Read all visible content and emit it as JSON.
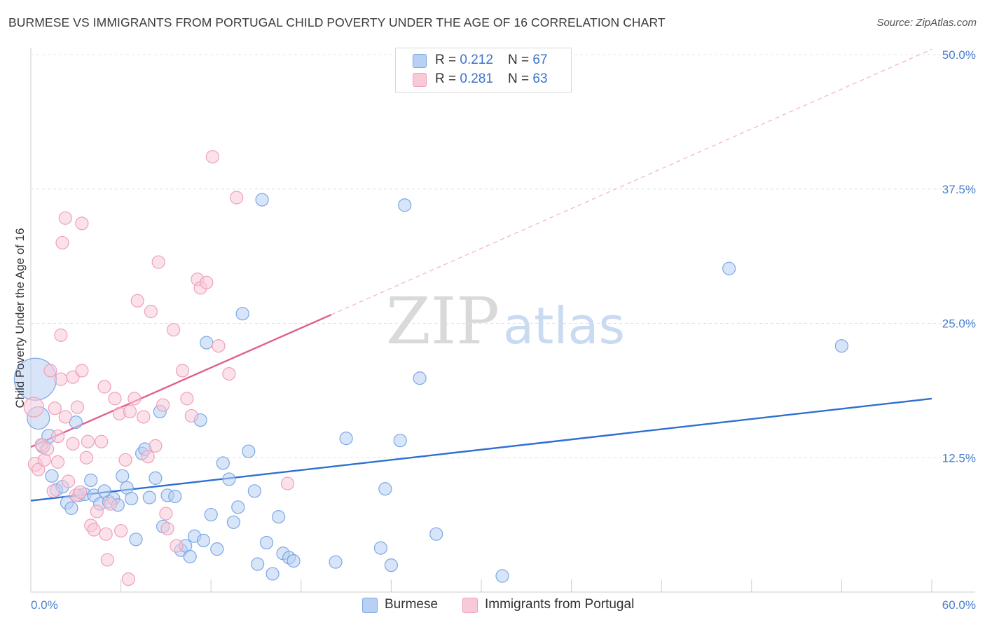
{
  "title": "BURMESE VS IMMIGRANTS FROM PORTUGAL CHILD POVERTY UNDER THE AGE OF 16 CORRELATION CHART",
  "source": "Source: ZipAtlas.com",
  "watermark": {
    "zip": "ZIP",
    "atlas": "atlas"
  },
  "legend": {
    "rows": [
      {
        "r_label": "R = ",
        "r_value": "0.212",
        "n_label": "N = ",
        "n_value": "67"
      },
      {
        "r_label": "R = ",
        "r_value": "0.281",
        "n_label": "N = ",
        "n_value": "63"
      }
    ]
  },
  "chart_data": {
    "type": "scatter",
    "title": "BURMESE VS IMMIGRANTS FROM PORTUGAL CHILD POVERTY UNDER THE AGE OF 16 CORRELATION CHART",
    "xlabel": "",
    "ylabel": "Child Poverty Under the Age of 16",
    "xlim": [
      0,
      60
    ],
    "ylim": [
      0,
      50
    ],
    "x_tick_labels": [
      "0.0%",
      "60.0%"
    ],
    "y_ticks": [
      12.5,
      25,
      37.5,
      50
    ],
    "y_tick_labels": [
      "12.5%",
      "25.0%",
      "37.5%",
      "50.0%"
    ],
    "grid": true,
    "legend_position": "top-center",
    "series": [
      {
        "name": "Burmese",
        "color": "#7ba7e6",
        "fill": "#b8d0f2",
        "line_color": "#2f6fd0",
        "trend": {
          "x": [
            0,
            60
          ],
          "y": [
            8.5,
            18.0
          ],
          "dashed_extension": false
        },
        "points": [
          [
            0.3,
            19.8,
            30
          ],
          [
            0.5,
            16.2,
            16
          ],
          [
            0.8,
            13.6,
            10
          ],
          [
            1.2,
            14.5,
            10
          ],
          [
            1.4,
            10.8,
            9
          ],
          [
            1.7,
            9.5,
            9
          ],
          [
            2.1,
            9.8,
            9
          ],
          [
            2.4,
            8.3,
            9
          ],
          [
            2.7,
            7.8,
            9
          ],
          [
            3.0,
            15.8,
            9
          ],
          [
            3.2,
            9.0,
            9
          ],
          [
            3.6,
            9.1,
            9
          ],
          [
            4.0,
            10.4,
            9
          ],
          [
            4.2,
            9.0,
            9
          ],
          [
            4.6,
            8.2,
            9
          ],
          [
            4.9,
            9.4,
            9
          ],
          [
            5.2,
            8.4,
            9
          ],
          [
            5.5,
            8.7,
            9
          ],
          [
            5.8,
            8.1,
            9
          ],
          [
            6.1,
            10.8,
            9
          ],
          [
            6.4,
            9.7,
            9
          ],
          [
            6.7,
            8.7,
            9
          ],
          [
            7.0,
            4.9,
            9
          ],
          [
            7.4,
            12.9,
            9
          ],
          [
            7.6,
            13.3,
            9
          ],
          [
            7.9,
            8.8,
            9
          ],
          [
            8.3,
            10.6,
            9
          ],
          [
            8.6,
            16.8,
            9
          ],
          [
            8.8,
            6.1,
            9
          ],
          [
            9.1,
            9.0,
            9
          ],
          [
            9.6,
            8.9,
            9
          ],
          [
            10.0,
            3.9,
            9
          ],
          [
            10.3,
            4.3,
            9
          ],
          [
            10.6,
            3.3,
            9
          ],
          [
            10.9,
            5.2,
            9
          ],
          [
            11.3,
            16.0,
            9
          ],
          [
            11.5,
            4.8,
            9
          ],
          [
            11.7,
            23.2,
            9
          ],
          [
            12.0,
            7.2,
            9
          ],
          [
            12.4,
            4.0,
            9
          ],
          [
            12.8,
            12.0,
            9
          ],
          [
            13.2,
            10.5,
            9
          ],
          [
            13.5,
            6.5,
            9
          ],
          [
            13.8,
            7.9,
            9
          ],
          [
            14.1,
            25.9,
            9
          ],
          [
            14.5,
            13.1,
            9
          ],
          [
            14.9,
            9.4,
            9
          ],
          [
            15.1,
            2.6,
            9
          ],
          [
            15.4,
            36.5,
            9
          ],
          [
            15.7,
            4.6,
            9
          ],
          [
            16.1,
            1.7,
            9
          ],
          [
            16.5,
            7.0,
            9
          ],
          [
            16.8,
            3.6,
            9
          ],
          [
            17.2,
            3.2,
            9
          ],
          [
            17.5,
            2.9,
            9
          ],
          [
            20.3,
            2.8,
            9
          ],
          [
            21.0,
            14.3,
            9
          ],
          [
            23.3,
            4.1,
            9
          ],
          [
            23.6,
            9.6,
            9
          ],
          [
            24.0,
            2.5,
            9
          ],
          [
            24.6,
            14.1,
            9
          ],
          [
            24.9,
            36.0,
            9
          ],
          [
            25.9,
            19.9,
            9
          ],
          [
            27.0,
            5.4,
            9
          ],
          [
            31.4,
            1.5,
            9
          ],
          [
            46.5,
            30.1,
            9
          ],
          [
            54.0,
            22.9,
            9
          ]
        ]
      },
      {
        "name": "Immigrants from Portugal",
        "color": "#f0a0b8",
        "fill": "#f8cad8",
        "line_color": "#e06090",
        "trend": {
          "x": [
            0,
            20
          ],
          "y": [
            13.5,
            25.8
          ],
          "dashed_extension": true,
          "dashed_to": [
            60,
            50.5
          ]
        },
        "points": [
          [
            0.2,
            17.2,
            14
          ],
          [
            0.3,
            11.9,
            10
          ],
          [
            0.5,
            11.4,
            9
          ],
          [
            0.7,
            13.7,
            9
          ],
          [
            0.9,
            12.3,
            9
          ],
          [
            1.1,
            13.3,
            9
          ],
          [
            1.3,
            20.6,
            9
          ],
          [
            1.6,
            17.1,
            9
          ],
          [
            1.8,
            14.5,
            9
          ],
          [
            2.0,
            19.8,
            9
          ],
          [
            2.3,
            16.3,
            9
          ],
          [
            2.5,
            10.3,
            9
          ],
          [
            2.8,
            13.8,
            9
          ],
          [
            3.0,
            9.0,
            9
          ],
          [
            3.3,
            9.3,
            9
          ],
          [
            1.5,
            9.4,
            9
          ],
          [
            1.8,
            12.1,
            9
          ],
          [
            2.0,
            23.9,
            9
          ],
          [
            2.1,
            32.5,
            9
          ],
          [
            2.3,
            34.8,
            9
          ],
          [
            2.8,
            20.0,
            9
          ],
          [
            3.1,
            17.2,
            9
          ],
          [
            3.4,
            20.6,
            9
          ],
          [
            3.4,
            34.3,
            9
          ],
          [
            3.7,
            12.5,
            9
          ],
          [
            3.8,
            14.0,
            9
          ],
          [
            4.0,
            6.2,
            9
          ],
          [
            4.2,
            5.8,
            9
          ],
          [
            4.4,
            7.5,
            9
          ],
          [
            4.7,
            14.0,
            9
          ],
          [
            5.0,
            5.4,
            9
          ],
          [
            4.9,
            19.1,
            9
          ],
          [
            5.1,
            3.0,
            9
          ],
          [
            5.3,
            8.2,
            9
          ],
          [
            5.6,
            18.0,
            9
          ],
          [
            5.9,
            16.6,
            9
          ],
          [
            6.3,
            12.3,
            9
          ],
          [
            6.6,
            16.8,
            9
          ],
          [
            6.9,
            18.0,
            9
          ],
          [
            7.1,
            27.1,
            9
          ],
          [
            7.5,
            16.3,
            9
          ],
          [
            7.8,
            12.6,
            9
          ],
          [
            8.0,
            26.1,
            9
          ],
          [
            8.3,
            13.6,
            9
          ],
          [
            8.5,
            30.7,
            9
          ],
          [
            8.8,
            17.4,
            9
          ],
          [
            9.0,
            7.3,
            9
          ],
          [
            9.1,
            5.9,
            9
          ],
          [
            9.5,
            24.4,
            9
          ],
          [
            9.7,
            4.3,
            9
          ],
          [
            10.1,
            20.6,
            9
          ],
          [
            10.4,
            18.0,
            9
          ],
          [
            10.7,
            16.4,
            9
          ],
          [
            11.1,
            29.1,
            9
          ],
          [
            11.3,
            28.3,
            9
          ],
          [
            11.7,
            28.8,
            9
          ],
          [
            12.1,
            40.5,
            9
          ],
          [
            12.5,
            22.9,
            9
          ],
          [
            13.2,
            20.3,
            9
          ],
          [
            13.7,
            36.7,
            9
          ],
          [
            17.1,
            10.1,
            9
          ],
          [
            6.5,
            1.2,
            9
          ],
          [
            6.0,
            5.7,
            9
          ]
        ]
      }
    ]
  }
}
